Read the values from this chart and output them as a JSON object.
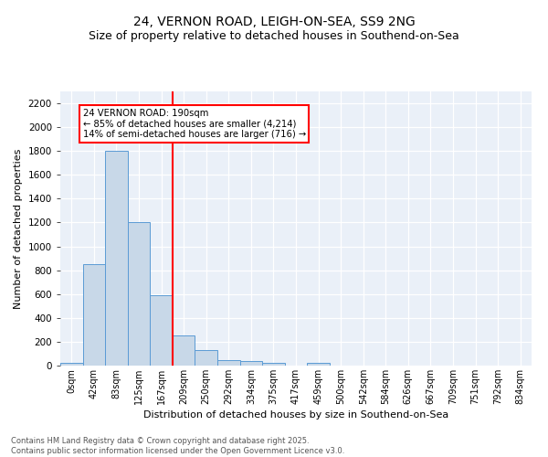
{
  "title1": "24, VERNON ROAD, LEIGH-ON-SEA, SS9 2NG",
  "title2": "Size of property relative to detached houses in Southend-on-Sea",
  "xlabel": "Distribution of detached houses by size in Southend-on-Sea",
  "ylabel": "Number of detached properties",
  "bin_labels": [
    "0sqm",
    "42sqm",
    "83sqm",
    "125sqm",
    "167sqm",
    "209sqm",
    "250sqm",
    "292sqm",
    "334sqm",
    "375sqm",
    "417sqm",
    "459sqm",
    "500sqm",
    "542sqm",
    "584sqm",
    "626sqm",
    "667sqm",
    "709sqm",
    "751sqm",
    "792sqm",
    "834sqm"
  ],
  "bar_heights": [
    25,
    850,
    1800,
    1200,
    590,
    255,
    130,
    45,
    35,
    25,
    0,
    20,
    0,
    0,
    0,
    0,
    0,
    0,
    0,
    0,
    0
  ],
  "bar_color": "#c8d8e8",
  "bar_edge_color": "#5b9bd5",
  "vline_x_index": 4.52,
  "annotation_text": "24 VERNON ROAD: 190sqm\n← 85% of detached houses are smaller (4,214)\n14% of semi-detached houses are larger (716) →",
  "annotation_box_color": "white",
  "annotation_box_edge": "red",
  "vline_color": "red",
  "ylim": [
    0,
    2300
  ],
  "yticks": [
    0,
    200,
    400,
    600,
    800,
    1000,
    1200,
    1400,
    1600,
    1800,
    2000,
    2200
  ],
  "footer_text": "Contains HM Land Registry data © Crown copyright and database right 2025.\nContains public sector information licensed under the Open Government Licence v3.0.",
  "background_color": "#eaf0f8",
  "title1_fontsize": 10,
  "title2_fontsize": 9
}
